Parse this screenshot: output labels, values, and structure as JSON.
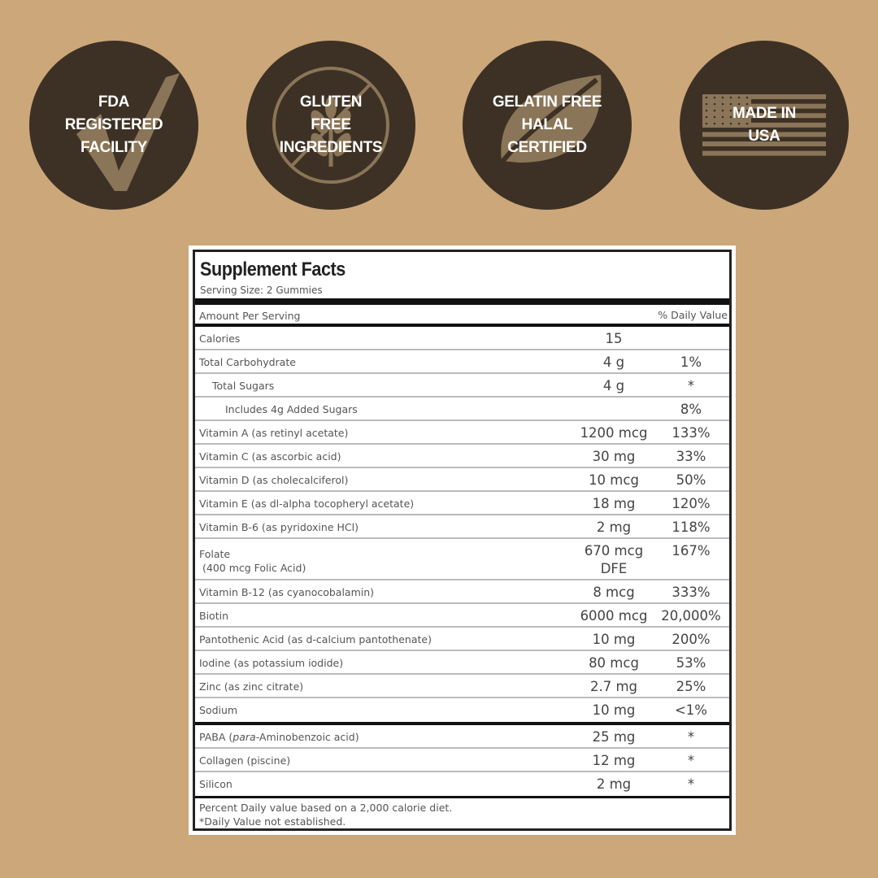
{
  "colors": {
    "background": "#cca77a",
    "badge": "#3d3125",
    "icon": "#8b7558",
    "text": "#ffffff"
  },
  "badges": [
    {
      "icon": "checkmark-icon",
      "lines": [
        "FDA",
        "REGISTERED",
        "FACILITY"
      ]
    },
    {
      "icon": "no-wheat-icon",
      "lines": [
        "GLUTEN",
        "FREE",
        "INGREDIENTS"
      ]
    },
    {
      "icon": "leaf-icon",
      "lines": [
        "GELATIN FREE",
        "HALAL",
        "CERTIFIED"
      ]
    },
    {
      "icon": "us-flag-icon",
      "lines": [
        "MADE IN",
        "USA"
      ]
    }
  ],
  "facts": {
    "title": "Supplement Facts",
    "serving": "Serving Size: 2 Gummies",
    "amount_header": "Amount Per Serving",
    "dv_header": "% Daily Value",
    "rows": [
      {
        "label": "Calories",
        "amount": "15",
        "dv": ""
      },
      {
        "label": "Total Carbohydrate",
        "amount": "4 g",
        "dv": "1%"
      },
      {
        "label": "Total Sugars",
        "amount": "4 g",
        "dv": "*",
        "indent": 1
      },
      {
        "label": "Includes 4g Added Sugars",
        "amount": "",
        "dv": "8%",
        "indent": 2
      },
      {
        "label": "Vitamin A (as retinyl acetate)",
        "amount": "1200 mcg",
        "dv": "133%"
      },
      {
        "label": "Vitamin C (as ascorbic acid)",
        "amount": "30 mg",
        "dv": "33%"
      },
      {
        "label": "Vitamin D (as cholecalciferol)",
        "amount": "10 mcg",
        "dv": "50%"
      },
      {
        "label": "Vitamin E (as dl-alpha tocopheryl acetate)",
        "amount": "18 mg",
        "dv": "120%"
      },
      {
        "label": "Vitamin B-6 (as pyridoxine HCl)",
        "amount": "2 mg",
        "dv": "118%"
      },
      {
        "label": "Folate",
        "sublabel": "(400 mcg Folic Acid)",
        "amount": "670 mcg",
        "amount2": "DFE",
        "dv": "167%"
      },
      {
        "label": "Vitamin B-12 (as cyanocobalamin)",
        "amount": "8 mcg",
        "dv": "333%"
      },
      {
        "label": "Biotin",
        "amount": "6000 mcg",
        "dv": "20,000%"
      },
      {
        "label": "Pantothenic Acid (as d-calcium pantothenate)",
        "amount": "10 mg",
        "dv": "200%"
      },
      {
        "label": "Iodine (as potassium iodide)",
        "amount": "80 mcg",
        "dv": "53%"
      },
      {
        "label": "Zinc (as zinc citrate)",
        "amount": "2.7 mg",
        "dv": "25%"
      },
      {
        "label": "Sodium",
        "amount": "10 mg",
        "dv": "<1%"
      }
    ],
    "other_rows": [
      {
        "label_prefix": "PABA (",
        "label_italic": "para",
        "label_suffix": "-Aminobenzoic acid)",
        "amount": "25 mg",
        "dv": "*"
      },
      {
        "label": "Collagen (piscine)",
        "amount": "12 mg",
        "dv": "*"
      },
      {
        "label": "Silicon",
        "amount": "2 mg",
        "dv": "*"
      }
    ],
    "footnotes": [
      "Percent Daily value based on a 2,000 calorie diet.",
      "*Daily Value not established."
    ]
  }
}
